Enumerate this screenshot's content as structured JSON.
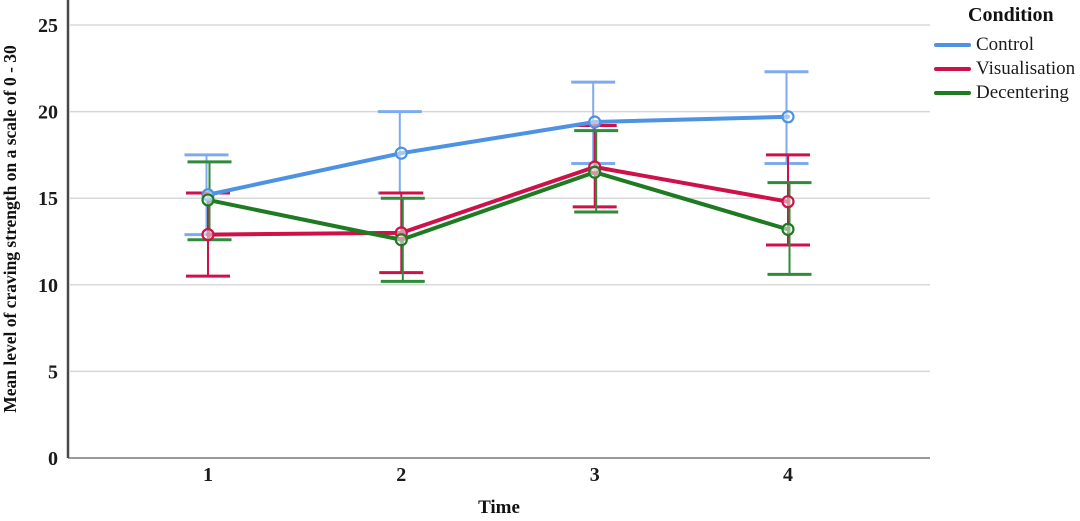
{
  "chart_data": {
    "type": "line",
    "title": "",
    "xlabel": "Time",
    "ylabel": "Mean level of craving strength on a scale of 0 - 30",
    "legend_title": "Condition",
    "legend_position": "top-right",
    "grid": true,
    "x": [
      1,
      2,
      3,
      4
    ],
    "ylim": [
      0,
      26.5
    ],
    "yticks": [
      0,
      5,
      10,
      15,
      20,
      25
    ],
    "colors": {
      "grid": "#d8d8d8",
      "baseline": "#9a9a9a",
      "axis": "#484848",
      "tick_text": "#1a1a1a"
    },
    "series": [
      {
        "name": "Control",
        "color": "#4E92E3",
        "bar_color": "#7FABEC",
        "values": [
          15.2,
          17.6,
          19.4,
          19.7
        ],
        "ci_low": [
          12.9,
          15.3,
          17.0,
          17.0
        ],
        "ci_high": [
          17.5,
          20.0,
          21.7,
          22.3
        ]
      },
      {
        "name": "Visualisation",
        "color": "#CE1249",
        "bar_color": "#CE1249",
        "values": [
          12.9,
          13.0,
          16.8,
          14.8
        ],
        "ci_low": [
          10.5,
          10.7,
          14.5,
          12.3
        ],
        "ci_high": [
          15.3,
          15.3,
          19.2,
          17.5
        ]
      },
      {
        "name": "Decentering",
        "color": "#1E7B22",
        "bar_color": "#2E8B3A",
        "values": [
          14.9,
          12.6,
          16.5,
          13.2
        ],
        "ci_low": [
          12.6,
          10.2,
          14.2,
          10.6
        ],
        "ci_high": [
          17.1,
          15.0,
          18.9,
          15.9
        ]
      }
    ]
  }
}
